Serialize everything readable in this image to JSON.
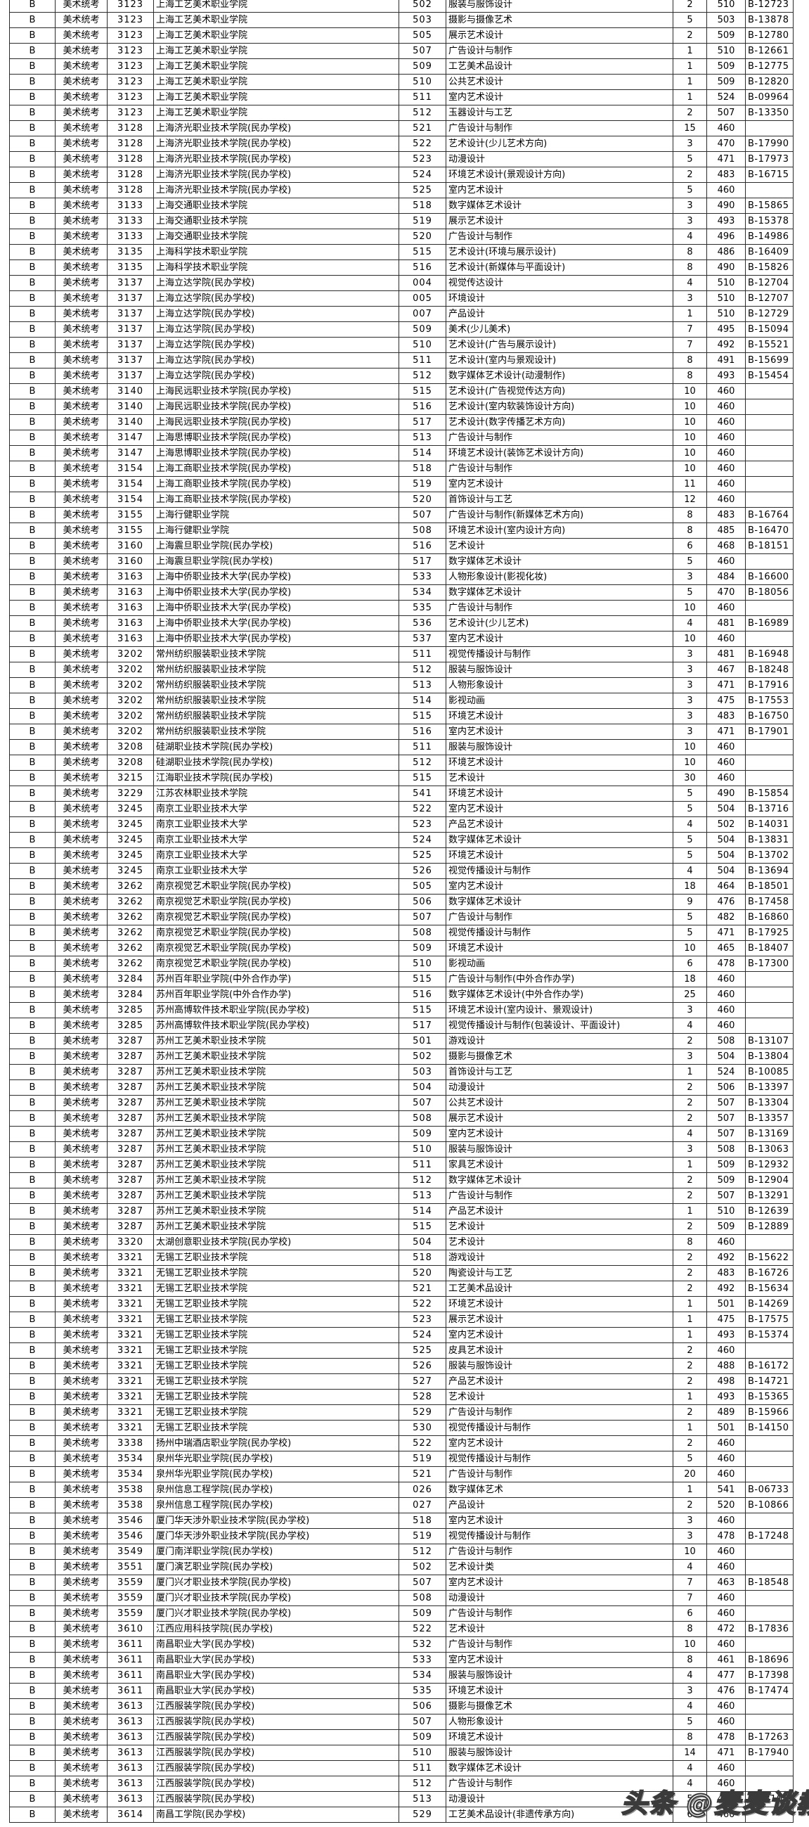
{
  "table": {
    "column_keys": [
      "batch",
      "exam",
      "school_code",
      "school_name",
      "major_code",
      "major_name",
      "plan_count",
      "score",
      "rank_id"
    ],
    "rows": [
      [
        "B",
        "美术统考",
        "3123",
        "上海工艺美术职业学院",
        "502",
        "服装与服饰设计",
        "2",
        "510",
        "B-12723"
      ],
      [
        "B",
        "美术统考",
        "3123",
        "上海工艺美术职业学院",
        "503",
        "摄影与摄像艺术",
        "5",
        "503",
        "B-13878"
      ],
      [
        "B",
        "美术统考",
        "3123",
        "上海工艺美术职业学院",
        "505",
        "展示艺术设计",
        "2",
        "509",
        "B-12780"
      ],
      [
        "B",
        "美术统考",
        "3123",
        "上海工艺美术职业学院",
        "507",
        "广告设计与制作",
        "1",
        "510",
        "B-12661"
      ],
      [
        "B",
        "美术统考",
        "3123",
        "上海工艺美术职业学院",
        "509",
        "工艺美术品设计",
        "1",
        "509",
        "B-12775"
      ],
      [
        "B",
        "美术统考",
        "3123",
        "上海工艺美术职业学院",
        "510",
        "公共艺术设计",
        "1",
        "509",
        "B-12820"
      ],
      [
        "B",
        "美术统考",
        "3123",
        "上海工艺美术职业学院",
        "511",
        "室内艺术设计",
        "1",
        "524",
        "B-09964"
      ],
      [
        "B",
        "美术统考",
        "3123",
        "上海工艺美术职业学院",
        "512",
        "玉器设计与工艺",
        "2",
        "507",
        "B-13350"
      ],
      [
        "B",
        "美术统考",
        "3128",
        "上海济光职业技术学院(民办学校)",
        "521",
        "广告设计与制作",
        "15",
        "460",
        ""
      ],
      [
        "B",
        "美术统考",
        "3128",
        "上海济光职业技术学院(民办学校)",
        "522",
        "艺术设计(少儿艺术方向)",
        "3",
        "470",
        "B-17990"
      ],
      [
        "B",
        "美术统考",
        "3128",
        "上海济光职业技术学院(民办学校)",
        "523",
        "动漫设计",
        "5",
        "471",
        "B-17973"
      ],
      [
        "B",
        "美术统考",
        "3128",
        "上海济光职业技术学院(民办学校)",
        "524",
        "环境艺术设计(景观设计方向)",
        "2",
        "483",
        "B-16715"
      ],
      [
        "B",
        "美术统考",
        "3128",
        "上海济光职业技术学院(民办学校)",
        "525",
        "室内艺术设计",
        "5",
        "460",
        ""
      ],
      [
        "B",
        "美术统考",
        "3133",
        "上海交通职业技术学院",
        "518",
        "数字媒体艺术设计",
        "3",
        "490",
        "B-15865"
      ],
      [
        "B",
        "美术统考",
        "3133",
        "上海交通职业技术学院",
        "519",
        "展示艺术设计",
        "3",
        "493",
        "B-15378"
      ],
      [
        "B",
        "美术统考",
        "3133",
        "上海交通职业技术学院",
        "520",
        "广告设计与制作",
        "4",
        "496",
        "B-14986"
      ],
      [
        "B",
        "美术统考",
        "3135",
        "上海科学技术职业学院",
        "515",
        "艺术设计(环境与展示设计)",
        "8",
        "486",
        "B-16409"
      ],
      [
        "B",
        "美术统考",
        "3135",
        "上海科学技术职业学院",
        "516",
        "艺术设计(新媒体与平面设计)",
        "8",
        "490",
        "B-15826"
      ],
      [
        "B",
        "美术统考",
        "3137",
        "上海立达学院(民办学校)",
        "004",
        "视觉传达设计",
        "4",
        "510",
        "B-12704"
      ],
      [
        "B",
        "美术统考",
        "3137",
        "上海立达学院(民办学校)",
        "005",
        "环境设计",
        "3",
        "510",
        "B-12707"
      ],
      [
        "B",
        "美术统考",
        "3137",
        "上海立达学院(民办学校)",
        "007",
        "产品设计",
        "1",
        "510",
        "B-12729"
      ],
      [
        "B",
        "美术统考",
        "3137",
        "上海立达学院(民办学校)",
        "509",
        "美术(少儿美术)",
        "7",
        "495",
        "B-15094"
      ],
      [
        "B",
        "美术统考",
        "3137",
        "上海立达学院(民办学校)",
        "510",
        "艺术设计(广告与展示设计)",
        "7",
        "492",
        "B-15521"
      ],
      [
        "B",
        "美术统考",
        "3137",
        "上海立达学院(民办学校)",
        "511",
        "艺术设计(室内与景观设计)",
        "8",
        "491",
        "B-15699"
      ],
      [
        "B",
        "美术统考",
        "3137",
        "上海立达学院(民办学校)",
        "512",
        "数字媒体艺术设计(动漫制作)",
        "8",
        "493",
        "B-15454"
      ],
      [
        "B",
        "美术统考",
        "3140",
        "上海民远职业技术学院(民办学校)",
        "515",
        "艺术设计(广告视觉传达方向)",
        "10",
        "460",
        ""
      ],
      [
        "B",
        "美术统考",
        "3140",
        "上海民远职业技术学院(民办学校)",
        "516",
        "艺术设计(室内软装饰设计方向)",
        "10",
        "460",
        ""
      ],
      [
        "B",
        "美术统考",
        "3140",
        "上海民远职业技术学院(民办学校)",
        "517",
        "艺术设计(数字传播艺术方向)",
        "10",
        "460",
        ""
      ],
      [
        "B",
        "美术统考",
        "3147",
        "上海思博职业技术学院(民办学校)",
        "513",
        "广告设计与制作",
        "10",
        "460",
        ""
      ],
      [
        "B",
        "美术统考",
        "3147",
        "上海思博职业技术学院(民办学校)",
        "514",
        "环境艺术设计(装饰艺术设计方向)",
        "10",
        "460",
        ""
      ],
      [
        "B",
        "美术统考",
        "3154",
        "上海工商职业技术学院(民办学校)",
        "518",
        "广告设计与制作",
        "10",
        "460",
        ""
      ],
      [
        "B",
        "美术统考",
        "3154",
        "上海工商职业技术学院(民办学校)",
        "519",
        "室内艺术设计",
        "11",
        "460",
        ""
      ],
      [
        "B",
        "美术统考",
        "3154",
        "上海工商职业技术学院(民办学校)",
        "520",
        "首饰设计与工艺",
        "12",
        "460",
        ""
      ],
      [
        "B",
        "美术统考",
        "3155",
        "上海行健职业学院",
        "507",
        "广告设计与制作(新媒体艺术方向)",
        "8",
        "483",
        "B-16764"
      ],
      [
        "B",
        "美术统考",
        "3155",
        "上海行健职业学院",
        "508",
        "环境艺术设计(室内设计方向)",
        "8",
        "485",
        "B-16470"
      ],
      [
        "B",
        "美术统考",
        "3160",
        "上海震旦职业学院(民办学校)",
        "516",
        "艺术设计",
        "6",
        "468",
        "B-18151"
      ],
      [
        "B",
        "美术统考",
        "3160",
        "上海震旦职业学院(民办学校)",
        "517",
        "数字媒体艺术设计",
        "5",
        "460",
        ""
      ],
      [
        "B",
        "美术统考",
        "3163",
        "上海中侨职业技术大学(民办学校)",
        "533",
        "人物形象设计(影视化妆)",
        "3",
        "484",
        "B-16600"
      ],
      [
        "B",
        "美术统考",
        "3163",
        "上海中侨职业技术大学(民办学校)",
        "534",
        "数字媒体艺术设计",
        "5",
        "470",
        "B-18056"
      ],
      [
        "B",
        "美术统考",
        "3163",
        "上海中侨职业技术大学(民办学校)",
        "535",
        "广告设计与制作",
        "10",
        "460",
        ""
      ],
      [
        "B",
        "美术统考",
        "3163",
        "上海中侨职业技术大学(民办学校)",
        "536",
        "艺术设计(少儿艺术)",
        "4",
        "481",
        "B-16989"
      ],
      [
        "B",
        "美术统考",
        "3163",
        "上海中侨职业技术大学(民办学校)",
        "537",
        "室内艺术设计",
        "10",
        "460",
        ""
      ],
      [
        "B",
        "美术统考",
        "3202",
        "常州纺织服装职业技术学院",
        "511",
        "视觉传播设计与制作",
        "3",
        "481",
        "B-16948"
      ],
      [
        "B",
        "美术统考",
        "3202",
        "常州纺织服装职业技术学院",
        "512",
        "服装与服饰设计",
        "3",
        "467",
        "B-18248"
      ],
      [
        "B",
        "美术统考",
        "3202",
        "常州纺织服装职业技术学院",
        "513",
        "人物形象设计",
        "3",
        "471",
        "B-17916"
      ],
      [
        "B",
        "美术统考",
        "3202",
        "常州纺织服装职业技术学院",
        "514",
        "影视动画",
        "3",
        "475",
        "B-17553"
      ],
      [
        "B",
        "美术统考",
        "3202",
        "常州纺织服装职业技术学院",
        "515",
        "环境艺术设计",
        "3",
        "483",
        "B-16750"
      ],
      [
        "B",
        "美术统考",
        "3202",
        "常州纺织服装职业技术学院",
        "516",
        "室内艺术设计",
        "3",
        "471",
        "B-17901"
      ],
      [
        "B",
        "美术统考",
        "3208",
        "硅湖职业技术学院(民办学校)",
        "511",
        "服装与服饰设计",
        "10",
        "460",
        ""
      ],
      [
        "B",
        "美术统考",
        "3208",
        "硅湖职业技术学院(民办学校)",
        "512",
        "环境艺术设计",
        "10",
        "460",
        ""
      ],
      [
        "B",
        "美术统考",
        "3215",
        "江海职业技术学院(民办学校)",
        "515",
        "艺术设计",
        "30",
        "460",
        ""
      ],
      [
        "B",
        "美术统考",
        "3229",
        "江苏农林职业技术学院",
        "541",
        "环境艺术设计",
        "5",
        "490",
        "B-15854"
      ],
      [
        "B",
        "美术统考",
        "3245",
        "南京工业职业技术大学",
        "522",
        "室内艺术设计",
        "5",
        "504",
        "B-13716"
      ],
      [
        "B",
        "美术统考",
        "3245",
        "南京工业职业技术大学",
        "523",
        "产品艺术设计",
        "4",
        "502",
        "B-14031"
      ],
      [
        "B",
        "美术统考",
        "3245",
        "南京工业职业技术大学",
        "524",
        "数字媒体艺术设计",
        "5",
        "504",
        "B-13831"
      ],
      [
        "B",
        "美术统考",
        "3245",
        "南京工业职业技术大学",
        "525",
        "环境艺术设计",
        "5",
        "504",
        "B-13702"
      ],
      [
        "B",
        "美术统考",
        "3245",
        "南京工业职业技术大学",
        "526",
        "视觉传播设计与制作",
        "4",
        "504",
        "B-13694"
      ],
      [
        "B",
        "美术统考",
        "3262",
        "南京视觉艺术职业学院(民办学校)",
        "505",
        "室内艺术设计",
        "18",
        "464",
        "B-18501"
      ],
      [
        "B",
        "美术统考",
        "3262",
        "南京视觉艺术职业学院(民办学校)",
        "506",
        "数字媒体艺术设计",
        "9",
        "476",
        "B-17458"
      ],
      [
        "B",
        "美术统考",
        "3262",
        "南京视觉艺术职业学院(民办学校)",
        "507",
        "广告设计与制作",
        "5",
        "482",
        "B-16860"
      ],
      [
        "B",
        "美术统考",
        "3262",
        "南京视觉艺术职业学院(民办学校)",
        "508",
        "视觉传播设计与制作",
        "5",
        "471",
        "B-17925"
      ],
      [
        "B",
        "美术统考",
        "3262",
        "南京视觉艺术职业学院(民办学校)",
        "509",
        "环境艺术设计",
        "10",
        "465",
        "B-18407"
      ],
      [
        "B",
        "美术统考",
        "3262",
        "南京视觉艺术职业学院(民办学校)",
        "510",
        "影视动画",
        "6",
        "478",
        "B-17300"
      ],
      [
        "B",
        "美术统考",
        "3284",
        "苏州百年职业学院(中外合作办学)",
        "515",
        "广告设计与制作(中外合作办学)",
        "18",
        "460",
        ""
      ],
      [
        "B",
        "美术统考",
        "3284",
        "苏州百年职业学院(中外合作办学)",
        "516",
        "数字媒体艺术设计(中外合作办学)",
        "25",
        "460",
        ""
      ],
      [
        "B",
        "美术统考",
        "3285",
        "苏州高博软件技术职业学院(民办学校)",
        "515",
        "环境艺术设计(室内设计、景观设计)",
        "3",
        "460",
        ""
      ],
      [
        "B",
        "美术统考",
        "3285",
        "苏州高博软件技术职业学院(民办学校)",
        "517",
        "视觉传播设计与制作(包装设计、平面设计)",
        "4",
        "460",
        ""
      ],
      [
        "B",
        "美术统考",
        "3287",
        "苏州工艺美术职业技术学院",
        "501",
        "游戏设计",
        "2",
        "508",
        "B-13107"
      ],
      [
        "B",
        "美术统考",
        "3287",
        "苏州工艺美术职业技术学院",
        "502",
        "摄影与摄像艺术",
        "3",
        "504",
        "B-13804"
      ],
      [
        "B",
        "美术统考",
        "3287",
        "苏州工艺美术职业技术学院",
        "503",
        "首饰设计与工艺",
        "1",
        "524",
        "B-10085"
      ],
      [
        "B",
        "美术统考",
        "3287",
        "苏州工艺美术职业技术学院",
        "504",
        "动漫设计",
        "2",
        "506",
        "B-13397"
      ],
      [
        "B",
        "美术统考",
        "3287",
        "苏州工艺美术职业技术学院",
        "507",
        "公共艺术设计",
        "2",
        "507",
        "B-13304"
      ],
      [
        "B",
        "美术统考",
        "3287",
        "苏州工艺美术职业技术学院",
        "508",
        "展示艺术设计",
        "2",
        "507",
        "B-13357"
      ],
      [
        "B",
        "美术统考",
        "3287",
        "苏州工艺美术职业技术学院",
        "509",
        "室内艺术设计",
        "4",
        "507",
        "B-13169"
      ],
      [
        "B",
        "美术统考",
        "3287",
        "苏州工艺美术职业技术学院",
        "510",
        "服装与服饰设计",
        "3",
        "508",
        "B-13063"
      ],
      [
        "B",
        "美术统考",
        "3287",
        "苏州工艺美术职业技术学院",
        "511",
        "家具艺术设计",
        "1",
        "509",
        "B-12932"
      ],
      [
        "B",
        "美术统考",
        "3287",
        "苏州工艺美术职业技术学院",
        "512",
        "数字媒体艺术设计",
        "2",
        "509",
        "B-12904"
      ],
      [
        "B",
        "美术统考",
        "3287",
        "苏州工艺美术职业技术学院",
        "513",
        "广告设计与制作",
        "2",
        "507",
        "B-13291"
      ],
      [
        "B",
        "美术统考",
        "3287",
        "苏州工艺美术职业技术学院",
        "514",
        "产品艺术设计",
        "1",
        "510",
        "B-12639"
      ],
      [
        "B",
        "美术统考",
        "3287",
        "苏州工艺美术职业技术学院",
        "515",
        "艺术设计",
        "2",
        "509",
        "B-12889"
      ],
      [
        "B",
        "美术统考",
        "3320",
        "太湖创意职业技术学院(民办学校)",
        "504",
        "艺术设计",
        "8",
        "460",
        ""
      ],
      [
        "B",
        "美术统考",
        "3321",
        "无锡工艺职业技术学院",
        "518",
        "游戏设计",
        "2",
        "492",
        "B-15622"
      ],
      [
        "B",
        "美术统考",
        "3321",
        "无锡工艺职业技术学院",
        "520",
        "陶瓷设计与工艺",
        "2",
        "483",
        "B-16726"
      ],
      [
        "B",
        "美术统考",
        "3321",
        "无锡工艺职业技术学院",
        "521",
        "工艺美术品设计",
        "2",
        "492",
        "B-15634"
      ],
      [
        "B",
        "美术统考",
        "3321",
        "无锡工艺职业技术学院",
        "522",
        "环境艺术设计",
        "1",
        "501",
        "B-14269"
      ],
      [
        "B",
        "美术统考",
        "3321",
        "无锡工艺职业技术学院",
        "523",
        "展示艺术设计",
        "1",
        "475",
        "B-17575"
      ],
      [
        "B",
        "美术统考",
        "3321",
        "无锡工艺职业技术学院",
        "524",
        "室内艺术设计",
        "1",
        "493",
        "B-15374"
      ],
      [
        "B",
        "美术统考",
        "3321",
        "无锡工艺职业技术学院",
        "525",
        "皮具艺术设计",
        "2",
        "460",
        ""
      ],
      [
        "B",
        "美术统考",
        "3321",
        "无锡工艺职业技术学院",
        "526",
        "服装与服饰设计",
        "2",
        "488",
        "B-16172"
      ],
      [
        "B",
        "美术统考",
        "3321",
        "无锡工艺职业技术学院",
        "527",
        "产品艺术设计",
        "2",
        "498",
        "B-14721"
      ],
      [
        "B",
        "美术统考",
        "3321",
        "无锡工艺职业技术学院",
        "528",
        "艺术设计",
        "1",
        "493",
        "B-15365"
      ],
      [
        "B",
        "美术统考",
        "3321",
        "无锡工艺职业技术学院",
        "529",
        "广告设计与制作",
        "2",
        "489",
        "B-15966"
      ],
      [
        "B",
        "美术统考",
        "3321",
        "无锡工艺职业技术学院",
        "530",
        "视觉传播设计与制作",
        "1",
        "501",
        "B-14150"
      ],
      [
        "B",
        "美术统考",
        "3338",
        "扬州中瑞酒店职业学院(民办学校)",
        "522",
        "室内艺术设计",
        "2",
        "460",
        ""
      ],
      [
        "B",
        "美术统考",
        "3534",
        "泉州华光职业学院(民办学校)",
        "519",
        "视觉传播设计与制作",
        "5",
        "460",
        ""
      ],
      [
        "B",
        "美术统考",
        "3534",
        "泉州华光职业学院(民办学校)",
        "521",
        "广告设计与制作",
        "20",
        "460",
        ""
      ],
      [
        "B",
        "美术统考",
        "3538",
        "泉州信息工程学院(民办学校)",
        "026",
        "数字媒体艺术",
        "1",
        "541",
        "B-06733"
      ],
      [
        "B",
        "美术统考",
        "3538",
        "泉州信息工程学院(民办学校)",
        "027",
        "产品设计",
        "2",
        "520",
        "B-10866"
      ],
      [
        "B",
        "美术统考",
        "3546",
        "厦门华天涉外职业技术学院(民办学校)",
        "518",
        "室内艺术设计",
        "3",
        "460",
        ""
      ],
      [
        "B",
        "美术统考",
        "3546",
        "厦门华天涉外职业技术学院(民办学校)",
        "519",
        "视觉传播设计与制作",
        "3",
        "478",
        "B-17248"
      ],
      [
        "B",
        "美术统考",
        "3549",
        "厦门南洋职业学院(民办学校)",
        "512",
        "广告设计与制作",
        "10",
        "460",
        ""
      ],
      [
        "B",
        "美术统考",
        "3551",
        "厦门演艺职业学院(民办学校)",
        "502",
        "艺术设计类",
        "4",
        "460",
        ""
      ],
      [
        "B",
        "美术统考",
        "3559",
        "厦门兴才职业技术学院(民办学校)",
        "507",
        "室内艺术设计",
        "7",
        "463",
        "B-18548"
      ],
      [
        "B",
        "美术统考",
        "3559",
        "厦门兴才职业技术学院(民办学校)",
        "508",
        "动漫设计",
        "7",
        "460",
        ""
      ],
      [
        "B",
        "美术统考",
        "3559",
        "厦门兴才职业技术学院(民办学校)",
        "509",
        "广告设计与制作",
        "6",
        "460",
        ""
      ],
      [
        "B",
        "美术统考",
        "3610",
        "江西应用科技学院(民办学校)",
        "522",
        "艺术设计",
        "8",
        "472",
        "B-17836"
      ],
      [
        "B",
        "美术统考",
        "3611",
        "南昌职业大学(民办学校)",
        "532",
        "广告设计与制作",
        "10",
        "460",
        ""
      ],
      [
        "B",
        "美术统考",
        "3611",
        "南昌职业大学(民办学校)",
        "533",
        "室内艺术设计",
        "8",
        "461",
        "B-18696"
      ],
      [
        "B",
        "美术统考",
        "3611",
        "南昌职业大学(民办学校)",
        "534",
        "服装与服饰设计",
        "4",
        "477",
        "B-17398"
      ],
      [
        "B",
        "美术统考",
        "3611",
        "南昌职业大学(民办学校)",
        "535",
        "环境艺术设计",
        "3",
        "476",
        "B-17474"
      ],
      [
        "B",
        "美术统考",
        "3613",
        "江西服装学院(民办学校)",
        "506",
        "摄影与摄像艺术",
        "4",
        "460",
        ""
      ],
      [
        "B",
        "美术统考",
        "3613",
        "江西服装学院(民办学校)",
        "507",
        "人物形象设计",
        "5",
        "460",
        ""
      ],
      [
        "B",
        "美术统考",
        "3613",
        "江西服装学院(民办学校)",
        "509",
        "环境艺术设计",
        "8",
        "478",
        "B-17263"
      ],
      [
        "B",
        "美术统考",
        "3613",
        "江西服装学院(民办学校)",
        "510",
        "服装与服饰设计",
        "14",
        "471",
        "B-17940"
      ],
      [
        "B",
        "美术统考",
        "3613",
        "江西服装学院(民办学校)",
        "511",
        "数字媒体艺术设计",
        "4",
        "460",
        ""
      ],
      [
        "B",
        "美术统考",
        "3613",
        "江西服装学院(民办学校)",
        "512",
        "广告设计与制作",
        "4",
        "460",
        ""
      ],
      [
        "B",
        "美术统考",
        "3613",
        "江西服装学院(民办学校)",
        "513",
        "动漫设计",
        "5",
        "469",
        "B-18105"
      ],
      [
        "B",
        "美术统考",
        "3614",
        "南昌工学院(民办学校)",
        "529",
        "工艺美术品设计(非遗传承方向)",
        "6",
        "460",
        ""
      ]
    ]
  },
  "watermark": {
    "text": "头条 @麦麦谈教育"
  }
}
